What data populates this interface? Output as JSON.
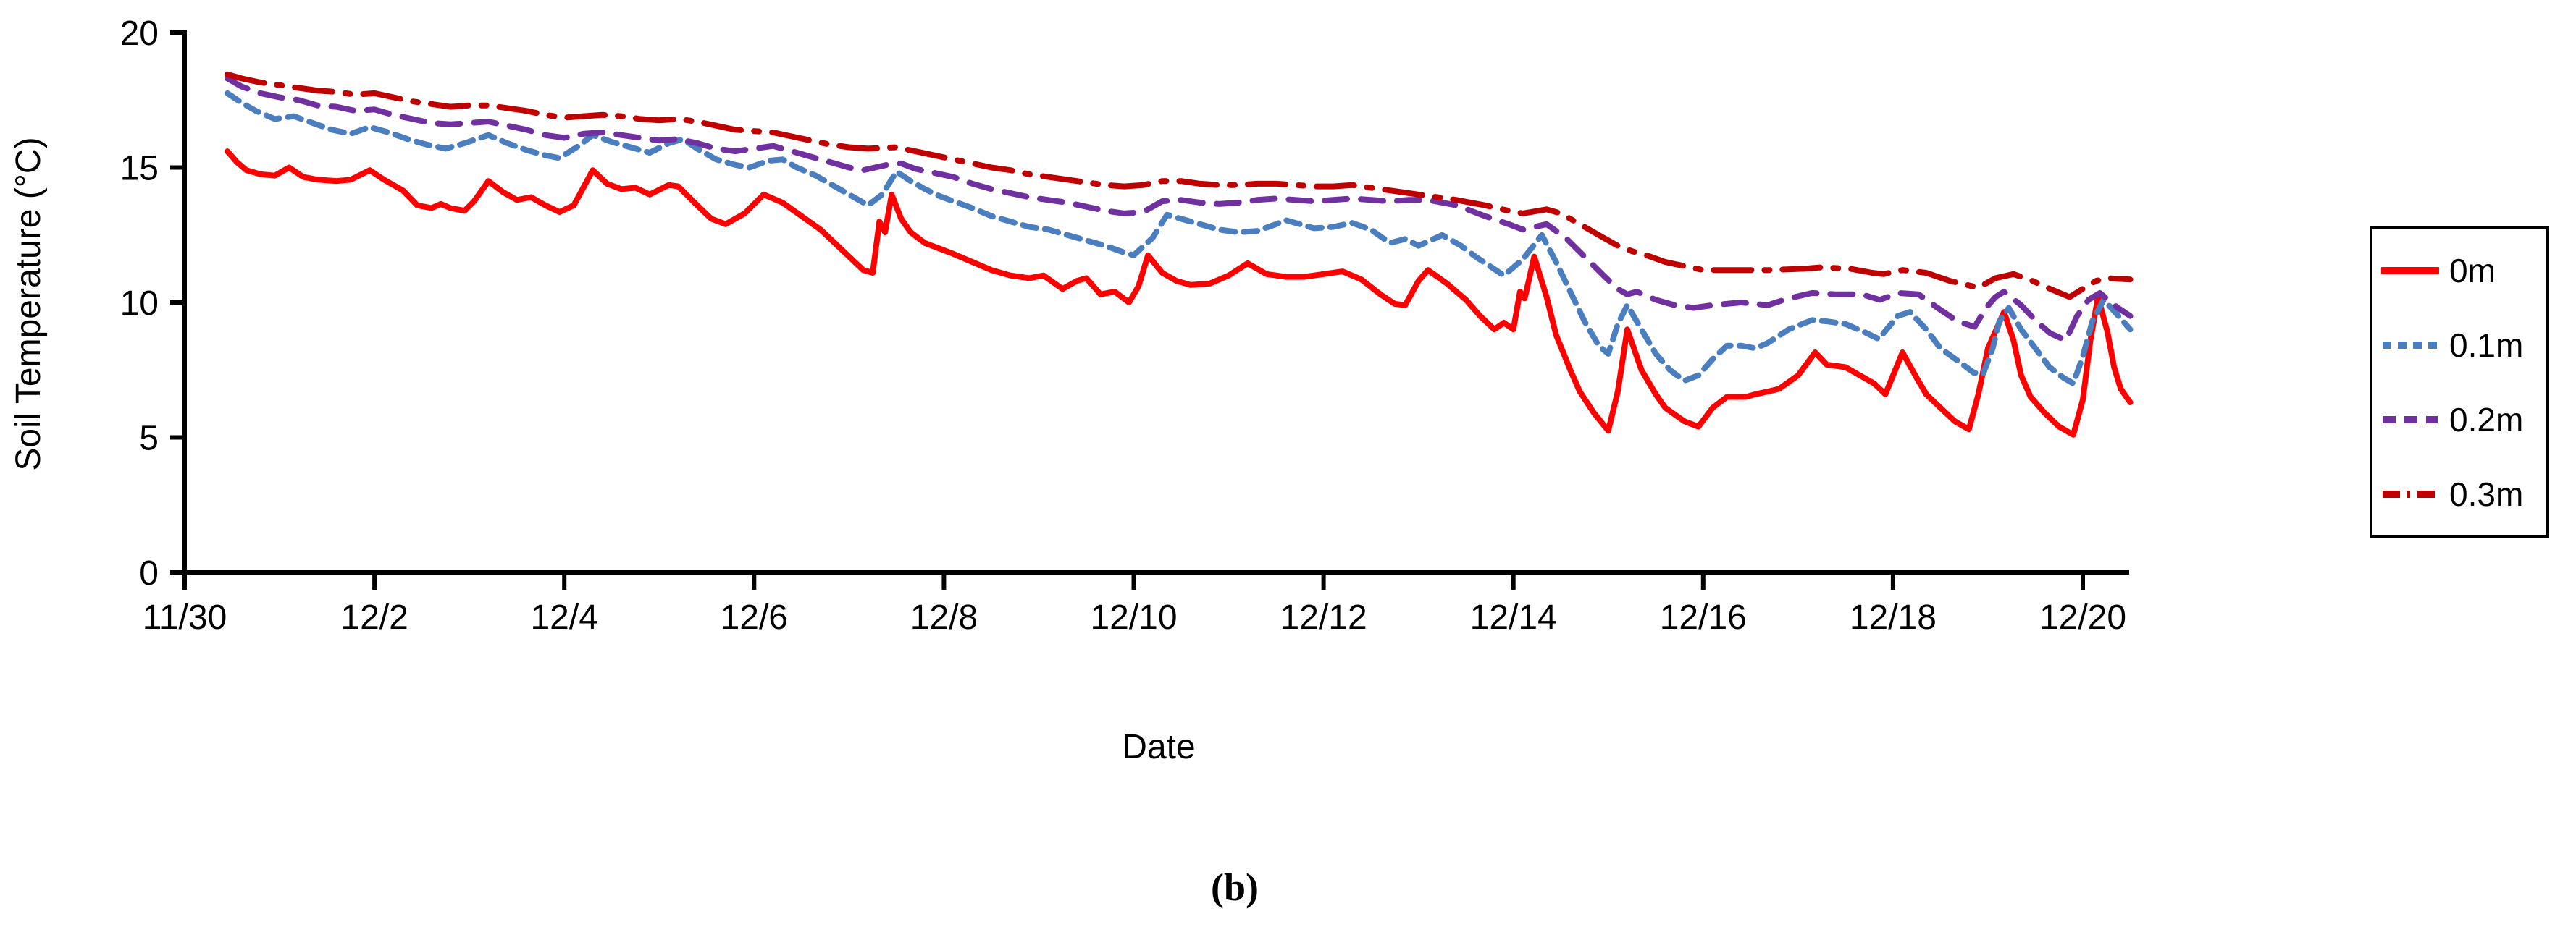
{
  "figure": {
    "caption": "(b)"
  },
  "chart_data": {
    "type": "line",
    "title": "",
    "xlabel": "Date",
    "ylabel": "Soil Temperature (°C)",
    "xlim_days_after_1130": [
      0,
      20.5
    ],
    "ylim": [
      0,
      20
    ],
    "grid": false,
    "legend_position": "right-outside-box",
    "y_ticks": [
      0,
      5,
      10,
      15,
      20
    ],
    "x_tick_days": [
      0,
      2,
      4,
      6,
      8,
      10,
      12,
      14,
      16,
      18,
      20
    ],
    "x_tick_labels": [
      "11/30",
      "12/2",
      "12/4",
      "12/6",
      "12/8",
      "12/10",
      "12/12",
      "12/14",
      "12/16",
      "12/18",
      "12/20"
    ],
    "axis_color": "#000000",
    "series": [
      {
        "name": "0m",
        "color": "#FF0000",
        "style": "solid",
        "x": [
          0.45,
          0.55,
          0.65,
          0.8,
          0.95,
          1.1,
          1.25,
          1.4,
          1.6,
          1.75,
          1.95,
          2.1,
          2.3,
          2.45,
          2.6,
          2.7,
          2.8,
          2.95,
          3.05,
          3.2,
          3.35,
          3.5,
          3.65,
          3.8,
          3.95,
          4.1,
          4.3,
          4.45,
          4.6,
          4.75,
          4.9,
          5.1,
          5.2,
          5.4,
          5.55,
          5.7,
          5.9,
          6.1,
          6.3,
          6.5,
          6.7,
          6.85,
          7.0,
          7.15,
          7.25,
          7.32,
          7.38,
          7.45,
          7.55,
          7.65,
          7.8,
          7.95,
          8.1,
          8.3,
          8.5,
          8.7,
          8.9,
          9.05,
          9.25,
          9.4,
          9.5,
          9.65,
          9.8,
          9.95,
          10.05,
          10.15,
          10.3,
          10.45,
          10.6,
          10.8,
          11.0,
          11.2,
          11.4,
          11.6,
          11.8,
          12.0,
          12.2,
          12.4,
          12.6,
          12.75,
          12.86,
          13.0,
          13.1,
          13.3,
          13.5,
          13.65,
          13.8,
          13.9,
          14.0,
          14.07,
          14.12,
          14.22,
          14.35,
          14.45,
          14.6,
          14.7,
          14.85,
          15.0,
          15.1,
          15.2,
          15.35,
          15.5,
          15.6,
          15.8,
          15.95,
          16.1,
          16.25,
          16.45,
          16.55,
          16.68,
          16.8,
          17.0,
          17.18,
          17.3,
          17.5,
          17.65,
          17.8,
          17.92,
          18.1,
          18.25,
          18.35,
          18.5,
          18.65,
          18.8,
          18.9,
          19.0,
          19.17,
          19.27,
          19.35,
          19.45,
          19.6,
          19.75,
          19.9,
          20.0,
          20.08,
          20.16,
          20.26,
          20.33,
          20.4,
          20.5
        ],
        "y": [
          15.6,
          15.2,
          14.9,
          14.75,
          14.7,
          15.0,
          14.65,
          14.55,
          14.5,
          14.55,
          14.9,
          14.55,
          14.15,
          13.6,
          13.5,
          13.65,
          13.5,
          13.4,
          13.75,
          14.5,
          14.1,
          13.8,
          13.9,
          13.6,
          13.35,
          13.6,
          14.9,
          14.4,
          14.2,
          14.25,
          14.0,
          14.35,
          14.3,
          13.6,
          13.1,
          12.9,
          13.3,
          14.0,
          13.7,
          13.2,
          12.7,
          12.2,
          11.7,
          11.2,
          11.1,
          13.0,
          12.6,
          14.0,
          13.1,
          12.6,
          12.2,
          12.0,
          11.8,
          11.5,
          11.2,
          11.0,
          10.9,
          11.0,
          10.5,
          10.8,
          10.9,
          10.3,
          10.4,
          10.0,
          10.6,
          11.75,
          11.1,
          10.8,
          10.65,
          10.7,
          11.0,
          11.45,
          11.05,
          10.95,
          10.95,
          11.05,
          11.15,
          10.85,
          10.3,
          9.95,
          9.9,
          10.8,
          11.2,
          10.7,
          10.1,
          9.5,
          9.0,
          9.25,
          9.0,
          10.4,
          10.15,
          11.7,
          10.2,
          8.8,
          7.5,
          6.7,
          5.9,
          5.25,
          6.7,
          9.0,
          7.5,
          6.6,
          6.1,
          5.6,
          5.4,
          6.1,
          6.5,
          6.5,
          6.6,
          6.7,
          6.8,
          7.3,
          8.15,
          7.7,
          7.6,
          7.3,
          7.0,
          6.6,
          8.15,
          7.2,
          6.6,
          6.1,
          5.6,
          5.3,
          6.6,
          8.3,
          9.65,
          8.6,
          7.3,
          6.5,
          5.9,
          5.4,
          5.1,
          6.4,
          8.6,
          10.2,
          8.9,
          7.6,
          6.8,
          6.3
        ]
      },
      {
        "name": "0.1m",
        "color": "#4A7EBF",
        "style": "dashed",
        "x": [
          0.45,
          0.6,
          0.75,
          0.95,
          1.15,
          1.35,
          1.55,
          1.75,
          1.95,
          2.15,
          2.35,
          2.55,
          2.75,
          2.95,
          3.2,
          3.4,
          3.6,
          3.8,
          3.95,
          4.15,
          4.3,
          4.5,
          4.7,
          4.9,
          5.1,
          5.25,
          5.4,
          5.6,
          5.8,
          5.95,
          6.15,
          6.3,
          6.45,
          6.65,
          6.85,
          7.05,
          7.2,
          7.35,
          7.5,
          7.65,
          7.8,
          7.95,
          8.1,
          8.3,
          8.5,
          8.7,
          8.9,
          9.1,
          9.3,
          9.5,
          9.7,
          9.9,
          10.0,
          10.2,
          10.35,
          10.5,
          10.7,
          10.9,
          11.1,
          11.3,
          11.5,
          11.6,
          11.75,
          11.9,
          12.1,
          12.3,
          12.5,
          12.7,
          12.86,
          13.0,
          13.25,
          13.45,
          13.6,
          13.75,
          13.9,
          14.1,
          14.3,
          14.45,
          14.6,
          14.75,
          14.9,
          15.0,
          15.1,
          15.2,
          15.35,
          15.5,
          15.65,
          15.8,
          15.95,
          16.1,
          16.25,
          16.4,
          16.55,
          16.68,
          16.9,
          17.15,
          17.3,
          17.5,
          17.7,
          17.85,
          18.05,
          18.18,
          18.35,
          18.5,
          18.7,
          18.85,
          18.95,
          19.05,
          19.12,
          19.22,
          19.35,
          19.5,
          19.65,
          19.8,
          19.9,
          20.0,
          20.1,
          20.22,
          20.35,
          20.5
        ],
        "y": [
          17.75,
          17.4,
          17.1,
          16.8,
          16.9,
          16.65,
          16.4,
          16.25,
          16.5,
          16.3,
          16.05,
          15.85,
          15.7,
          15.9,
          16.2,
          15.9,
          15.65,
          15.45,
          15.35,
          15.8,
          16.2,
          15.95,
          15.75,
          15.55,
          15.9,
          16.05,
          15.7,
          15.3,
          15.1,
          15.0,
          15.25,
          15.3,
          15.0,
          14.7,
          14.3,
          13.9,
          13.6,
          14.0,
          14.85,
          14.5,
          14.2,
          13.95,
          13.75,
          13.5,
          13.2,
          13.0,
          12.8,
          12.7,
          12.5,
          12.3,
          12.1,
          11.85,
          11.75,
          12.4,
          13.25,
          13.1,
          12.9,
          12.7,
          12.6,
          12.65,
          12.9,
          13.05,
          12.9,
          12.75,
          12.8,
          12.95,
          12.7,
          12.2,
          12.35,
          12.1,
          12.5,
          12.1,
          11.7,
          11.35,
          11.0,
          11.6,
          12.5,
          11.5,
          10.4,
          9.3,
          8.4,
          8.1,
          9.2,
          9.9,
          9.0,
          8.1,
          7.5,
          7.1,
          7.3,
          7.9,
          8.4,
          8.4,
          8.3,
          8.5,
          9.0,
          9.35,
          9.3,
          9.2,
          8.9,
          8.65,
          9.5,
          9.65,
          9.0,
          8.3,
          7.8,
          7.4,
          7.35,
          8.3,
          9.3,
          9.8,
          9.0,
          8.3,
          7.6,
          7.2,
          7.0,
          8.0,
          9.3,
          10.1,
          9.6,
          9.0
        ]
      },
      {
        "name": "0.2m",
        "color": "#7030A0",
        "style": "long-dash",
        "x": [
          0.45,
          0.6,
          0.8,
          1.0,
          1.2,
          1.4,
          1.6,
          1.8,
          2.0,
          2.2,
          2.4,
          2.6,
          2.8,
          3.0,
          3.2,
          3.4,
          3.6,
          3.8,
          4.0,
          4.2,
          4.4,
          4.6,
          4.8,
          5.0,
          5.2,
          5.4,
          5.6,
          5.8,
          6.0,
          6.2,
          6.4,
          6.6,
          6.8,
          7.0,
          7.15,
          7.4,
          7.55,
          7.7,
          7.9,
          8.1,
          8.3,
          8.5,
          8.7,
          8.9,
          9.1,
          9.3,
          9.5,
          9.7,
          9.9,
          10.1,
          10.3,
          10.5,
          10.7,
          10.9,
          11.1,
          11.3,
          11.5,
          11.7,
          11.9,
          12.1,
          12.3,
          12.5,
          12.7,
          12.9,
          13.1,
          13.4,
          13.7,
          13.95,
          14.1,
          14.35,
          14.55,
          14.75,
          14.95,
          15.1,
          15.2,
          15.3,
          15.5,
          15.7,
          15.9,
          16.1,
          16.4,
          16.68,
          16.9,
          17.15,
          17.4,
          17.67,
          17.86,
          18.06,
          18.27,
          18.47,
          18.68,
          18.86,
          18.98,
          19.08,
          19.17,
          19.35,
          19.51,
          19.66,
          19.82,
          19.94,
          20.06,
          20.18,
          20.37,
          20.5
        ],
        "y": [
          18.3,
          18.0,
          17.75,
          17.6,
          17.5,
          17.3,
          17.25,
          17.1,
          17.15,
          16.95,
          16.8,
          16.65,
          16.6,
          16.65,
          16.7,
          16.55,
          16.4,
          16.2,
          16.1,
          16.25,
          16.3,
          16.2,
          16.1,
          16.0,
          16.05,
          15.9,
          15.7,
          15.6,
          15.7,
          15.8,
          15.6,
          15.4,
          15.2,
          15.0,
          14.9,
          15.1,
          15.15,
          14.95,
          14.8,
          14.65,
          14.4,
          14.2,
          14.05,
          13.9,
          13.8,
          13.7,
          13.55,
          13.4,
          13.3,
          13.35,
          13.75,
          13.8,
          13.7,
          13.65,
          13.7,
          13.8,
          13.85,
          13.8,
          13.75,
          13.8,
          13.85,
          13.8,
          13.75,
          13.8,
          13.8,
          13.6,
          13.2,
          12.9,
          12.7,
          12.9,
          12.4,
          11.7,
          11.0,
          10.5,
          10.3,
          10.4,
          10.1,
          9.9,
          9.8,
          9.9,
          10.0,
          9.9,
          10.15,
          10.35,
          10.3,
          10.3,
          10.1,
          10.35,
          10.3,
          9.8,
          9.3,
          9.1,
          9.8,
          10.2,
          10.4,
          9.9,
          9.3,
          8.85,
          8.6,
          9.5,
          10.1,
          10.35,
          9.8,
          9.5
        ]
      },
      {
        "name": "0.3m",
        "color": "#C00000",
        "style": "dash-dot",
        "x": [
          0.45,
          0.6,
          0.8,
          1.0,
          1.2,
          1.4,
          1.6,
          1.8,
          2.0,
          2.2,
          2.4,
          2.6,
          2.8,
          3.0,
          3.2,
          3.4,
          3.6,
          3.8,
          4.0,
          4.2,
          4.4,
          4.6,
          4.8,
          5.0,
          5.2,
          5.4,
          5.6,
          5.8,
          6.0,
          6.2,
          6.4,
          6.6,
          6.8,
          7.0,
          7.2,
          7.5,
          7.7,
          7.9,
          8.1,
          8.3,
          8.5,
          8.7,
          8.9,
          9.1,
          9.3,
          9.5,
          9.7,
          9.9,
          10.1,
          10.3,
          10.5,
          10.7,
          10.9,
          11.1,
          11.3,
          11.5,
          11.7,
          11.9,
          12.1,
          12.3,
          12.5,
          12.7,
          12.9,
          13.1,
          13.4,
          13.7,
          13.95,
          14.1,
          14.35,
          14.5,
          14.7,
          14.9,
          15.1,
          15.25,
          15.4,
          15.6,
          15.8,
          16.0,
          16.3,
          16.68,
          17.06,
          17.24,
          17.55,
          17.78,
          17.9,
          18.1,
          18.35,
          18.6,
          18.9,
          19.08,
          19.27,
          19.47,
          19.66,
          19.86,
          20.02,
          20.14,
          20.26,
          20.5
        ],
        "y": [
          18.45,
          18.3,
          18.15,
          18.05,
          17.95,
          17.85,
          17.8,
          17.7,
          17.75,
          17.6,
          17.45,
          17.35,
          17.25,
          17.3,
          17.3,
          17.2,
          17.1,
          16.95,
          16.85,
          16.9,
          16.95,
          16.9,
          16.8,
          16.75,
          16.8,
          16.7,
          16.55,
          16.4,
          16.35,
          16.3,
          16.15,
          16.0,
          15.85,
          15.75,
          15.7,
          15.75,
          15.6,
          15.45,
          15.3,
          15.15,
          15.0,
          14.9,
          14.75,
          14.65,
          14.55,
          14.45,
          14.35,
          14.3,
          14.35,
          14.5,
          14.5,
          14.4,
          14.35,
          14.35,
          14.4,
          14.4,
          14.35,
          14.3,
          14.3,
          14.35,
          14.25,
          14.15,
          14.05,
          13.95,
          13.8,
          13.6,
          13.4,
          13.3,
          13.45,
          13.3,
          12.9,
          12.5,
          12.1,
          11.9,
          11.75,
          11.5,
          11.35,
          11.2,
          11.2,
          11.2,
          11.25,
          11.3,
          11.25,
          11.1,
          11.05,
          11.2,
          11.1,
          10.8,
          10.55,
          10.9,
          11.05,
          10.8,
          10.5,
          10.2,
          10.55,
          10.8,
          10.9,
          10.85
        ]
      }
    ]
  }
}
